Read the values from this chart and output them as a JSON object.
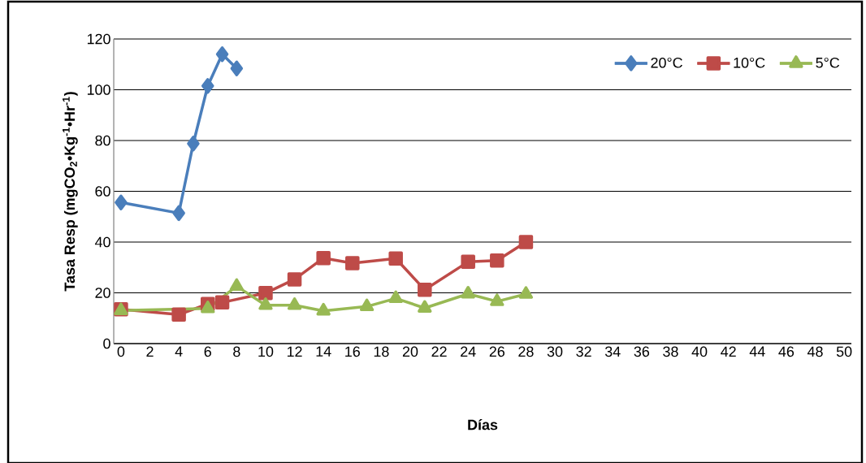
{
  "chart_data": {
    "type": "line",
    "xlabel": "Días",
    "ylabel": "Tasa Resp (mgCO$_{2}$•Kg$^{-1}$•Hr$^{-1}$)",
    "xlim": [
      -0.5,
      50.5
    ],
    "xticks": [
      0,
      2,
      4,
      6,
      8,
      10,
      12,
      14,
      16,
      18,
      20,
      22,
      24,
      26,
      28,
      30,
      32,
      34,
      36,
      38,
      40,
      42,
      44,
      46,
      48,
      50
    ],
    "ylim": [
      0,
      120
    ],
    "yticks": [
      0,
      20,
      40,
      60,
      80,
      100,
      120
    ],
    "grid": "y",
    "legend": "top right",
    "line_style": "solid",
    "series": [
      {
        "name": "20°C",
        "color": "#4a7ebb",
        "marker": "diamond",
        "x": [
          0,
          4,
          5,
          6,
          7,
          8
        ],
        "values": [
          55.6,
          51.4,
          78.8,
          101.5,
          114,
          108.4
        ]
      },
      {
        "name": "10°C",
        "color": "#be4b48",
        "marker": "square",
        "x": [
          0,
          4,
          6,
          7,
          10,
          12,
          14,
          16,
          19,
          21,
          24,
          26,
          28
        ],
        "values": [
          13.5,
          11.4,
          15.6,
          16.2,
          19.9,
          25.3,
          33.7,
          31.7,
          33.5,
          21.2,
          32.2,
          32.7,
          40
        ]
      },
      {
        "name": "5°C",
        "color": "#98b954",
        "marker": "triangle",
        "x": [
          0,
          6,
          8,
          10,
          12,
          14,
          17,
          19,
          21,
          24,
          26,
          28
        ],
        "values": [
          13,
          13.8,
          22.6,
          15.1,
          15.1,
          12.9,
          14.6,
          17.8,
          14,
          19.6,
          16.6,
          19.5
        ]
      }
    ]
  }
}
